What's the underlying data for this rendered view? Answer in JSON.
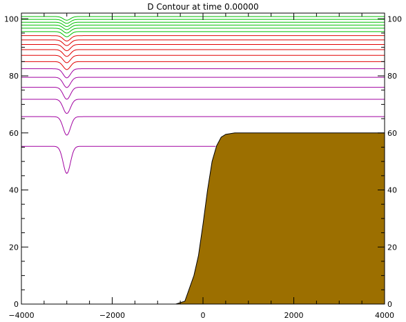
{
  "chart_data": {
    "type": "line",
    "title": "D Contour at time 0.00000",
    "xlabel": "",
    "ylabel": "",
    "xlim": [
      -4000,
      4000
    ],
    "ylim": [
      0,
      102
    ],
    "x_ticks": [
      -4000,
      -2000,
      0,
      2000,
      4000
    ],
    "x_tick_labels": [
      "−4000",
      "−2000",
      "0",
      "2000",
      "4000"
    ],
    "y_ticks": [
      0,
      20,
      40,
      60,
      80,
      100
    ],
    "y_tick_labels": [
      "0",
      "20",
      "40",
      "60",
      "80",
      "100"
    ],
    "mirror_right_axis_labels": true,
    "grid": false,
    "legend": "none",
    "terrain": {
      "name": "topography",
      "color": "#9c6f00",
      "profile": {
        "x": [
          -4000,
          -1000,
          -600,
          -400,
          -200,
          -100,
          0,
          100,
          200,
          300,
          400,
          500,
          700,
          1000,
          4000
        ],
        "y": [
          0,
          0,
          0,
          1,
          10,
          17,
          28,
          40,
          50,
          55.5,
          58.5,
          59.5,
          60,
          60,
          60
        ]
      }
    },
    "contours": {
      "dip_center_x": -3000,
      "dip_halfwidth_x": 80,
      "series": [
        {
          "level": 55.3,
          "dip": 9.5,
          "color": "#a000a0"
        },
        {
          "level": 65.7,
          "dip": 6.5,
          "color": "#a000a0"
        },
        {
          "level": 71.8,
          "dip": 5.0,
          "color": "#a000a0"
        },
        {
          "level": 76.0,
          "dip": 4.2,
          "color": "#a000a0"
        },
        {
          "level": 79.5,
          "dip": 3.6,
          "color": "#a000a0"
        },
        {
          "level": 82.5,
          "dip": 3.2,
          "color": "#a000a0"
        },
        {
          "level": 85.0,
          "dip": 2.8,
          "color": "#e00000"
        },
        {
          "level": 87.2,
          "dip": 2.6,
          "color": "#e00000"
        },
        {
          "level": 89.2,
          "dip": 2.4,
          "color": "#e00000"
        },
        {
          "level": 91.0,
          "dip": 2.2,
          "color": "#e00000"
        },
        {
          "level": 92.6,
          "dip": 2.0,
          "color": "#e00000"
        },
        {
          "level": 94.1,
          "dip": 1.9,
          "color": "#e00000"
        },
        {
          "level": 95.5,
          "dip": 1.8,
          "color": "#00c000"
        },
        {
          "level": 96.7,
          "dip": 1.7,
          "color": "#00c000"
        },
        {
          "level": 97.8,
          "dip": 1.6,
          "color": "#00c000"
        },
        {
          "level": 98.8,
          "dip": 1.5,
          "color": "#00c000"
        },
        {
          "level": 99.8,
          "dip": 1.4,
          "color": "#00c000"
        },
        {
          "level": 100.8,
          "dip": 1.3,
          "color": "#00c000"
        }
      ]
    }
  }
}
